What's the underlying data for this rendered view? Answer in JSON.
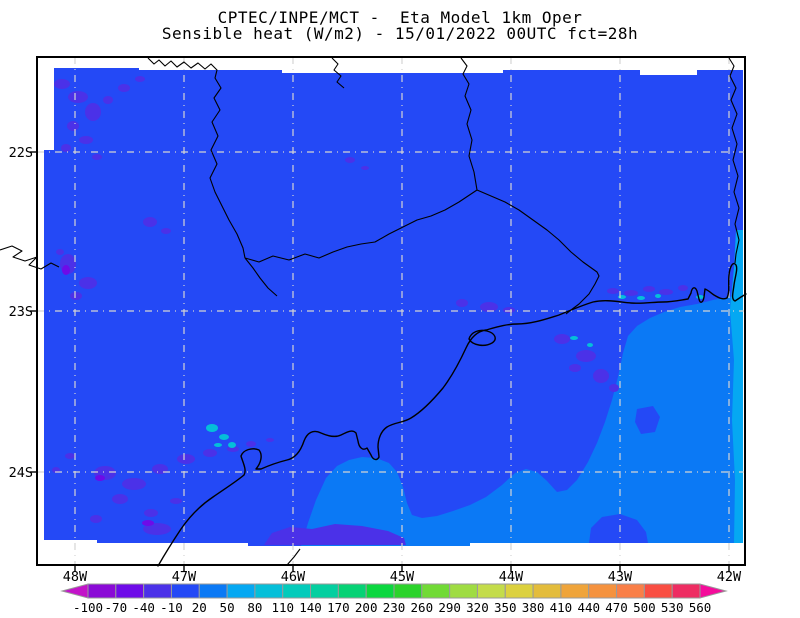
{
  "title": {
    "line1": "CPTEC/INPE/MCT -  Eta Model 1km Oper",
    "line2": "Sensible heat (W/m2) - 15/01/2022 00UTC fct=28h"
  },
  "map": {
    "lat_labels": [
      "22S",
      "23S",
      "24S"
    ],
    "lon_labels": [
      "48W",
      "47W",
      "46W",
      "45W",
      "44W",
      "43W",
      "42W"
    ],
    "colors": {
      "land_field": "#2449F6",
      "sea_field": "#0B79F5",
      "coastal_strip": "#05A8F2",
      "anomaly_violet": "#4B31E8",
      "anomaly_deep_violet": "#6E0BE8",
      "anomaly_cyan": "#05BFD9",
      "gridline": "#D4D4D4",
      "coastline": "#000000",
      "background": "#FFFFFF"
    }
  },
  "colorbar": {
    "tick_labels": [
      "-100",
      "-70",
      "-40",
      "-10",
      "20",
      "50",
      "80",
      "110",
      "140",
      "170",
      "200",
      "230",
      "260",
      "290",
      "320",
      "350",
      "380",
      "410",
      "440",
      "470",
      "500",
      "530",
      "560"
    ],
    "cell_colors": [
      "#8A0AD6",
      "#6E0BE8",
      "#4B31E8",
      "#2449F6",
      "#0B79F5",
      "#05A8F2",
      "#05BFD9",
      "#04CBBB",
      "#04CFA0",
      "#06D275",
      "#0BD73F",
      "#2BD32B",
      "#71DA35",
      "#9FDC42",
      "#C4DC4A",
      "#DCD13F",
      "#E3BC3B",
      "#EFA43A",
      "#F5923E",
      "#F97F48",
      "#F94E42",
      "#EE2D62"
    ],
    "arrow_left_color": "#C313C9",
    "arrow_right_color": "#F40C9B"
  },
  "chart_data": {
    "type": "heatmap",
    "title": "CPTEC/INPE/MCT -  Eta Model 1km Oper",
    "subtitle": "Sensible heat (W/m2) - 15/01/2022 00UTC fct=28h",
    "organization": "CPTEC/INPE/MCT",
    "model": "Eta Model 1km Oper",
    "variable": "Sensible heat",
    "units": "W/m2",
    "valid_time": "15/01/2022 00UTC",
    "forecast": "fct=28h",
    "x_ticks": [
      "48W",
      "47W",
      "46W",
      "45W",
      "44W",
      "43W",
      "42W"
    ],
    "y_ticks": [
      "22S",
      "23S",
      "24S"
    ],
    "grid": true,
    "legend_position": "bottom",
    "colorbar_values": [
      -100,
      -70,
      -40,
      -10,
      20,
      50,
      80,
      110,
      140,
      170,
      200,
      230,
      260,
      290,
      320,
      350,
      380,
      410,
      440,
      470,
      500,
      530,
      560
    ],
    "field_regions": [
      {
        "area": "land / most of domain",
        "value_range_wm2": "-10 to 20"
      },
      {
        "area": "ocean southeast of the coastline",
        "value_range_wm2": "20 to 50"
      },
      {
        "area": "narrow strip along eastern edge near 42W",
        "value_range_wm2": "50 to 80"
      },
      {
        "area": "scattered patches in SW quadrant, near 23S and along coast",
        "value_range_wm2": "-40 to -10"
      },
      {
        "area": "tiny specks near Santos coast and Rio coast",
        "value_range_wm2": "50 to 110"
      }
    ]
  }
}
